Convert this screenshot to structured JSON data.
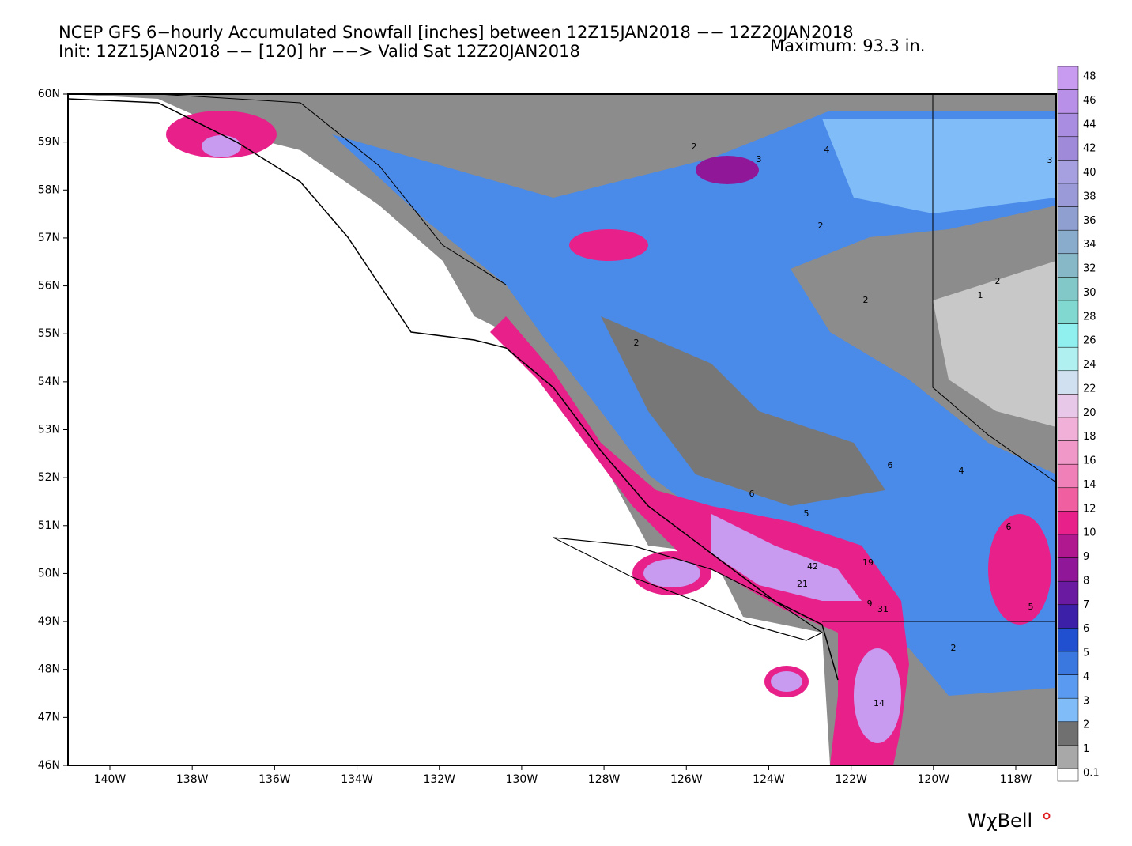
{
  "header": {
    "title": "NCEP GFS 6−hourly Accumulated Snowfall [inches] between 12Z15JAN2018 −− 12Z20JAN2018",
    "subtitle": "Init: 12Z15JAN2018 −− [120] hr −−> Valid Sat 12Z20JAN2018",
    "maximum": "Maximum:  93.3 in."
  },
  "map": {
    "lat_labels": [
      "60N",
      "59N",
      "58N",
      "57N",
      "56N",
      "55N",
      "54N",
      "53N",
      "52N",
      "51N",
      "50N",
      "49N",
      "48N",
      "47N",
      "46N"
    ],
    "lon_labels": [
      "140W",
      "138W",
      "136W",
      "134W",
      "132W",
      "130W",
      "128W",
      "126W",
      "124W",
      "122W",
      "120W",
      "118W"
    ],
    "contour_labels": [
      "2",
      "3",
      "4",
      "3",
      "2",
      "2",
      "2",
      "6",
      "6",
      "5",
      "42",
      "21",
      "19",
      "31",
      "9",
      "14",
      "2",
      "4",
      "6",
      "5",
      "1",
      "2"
    ]
  },
  "colorbar": {
    "labels": [
      "48",
      "46",
      "44",
      "42",
      "40",
      "38",
      "36",
      "34",
      "32",
      "30",
      "28",
      "26",
      "24",
      "22",
      "20",
      "18",
      "16",
      "14",
      "12",
      "10",
      "9",
      "8",
      "7",
      "6",
      "5",
      "4",
      "3",
      "2",
      "1",
      "0.1"
    ],
    "colors": [
      "#c89af0",
      "#b890e8",
      "#a98de0",
      "#9e8ad8",
      "#a6a0e0",
      "#9a9ad8",
      "#8fa0d0",
      "#8aaccc",
      "#86b8c8",
      "#82c8c8",
      "#80d8d0",
      "#90f0f0",
      "#b0f0f0",
      "#d0e0f0",
      "#e8c8e8",
      "#f0b0d8",
      "#f098c8",
      "#f080b8",
      "#f060a0",
      "#e8208a",
      "#b01890",
      "#901898",
      "#6a1aa0",
      "#3c20a8",
      "#2050d0",
      "#3a78e0",
      "#5a9af0",
      "#80bcf8",
      "#707070",
      "#a8a8a8"
    ]
  },
  "footer": {
    "logo": "WχBell"
  }
}
